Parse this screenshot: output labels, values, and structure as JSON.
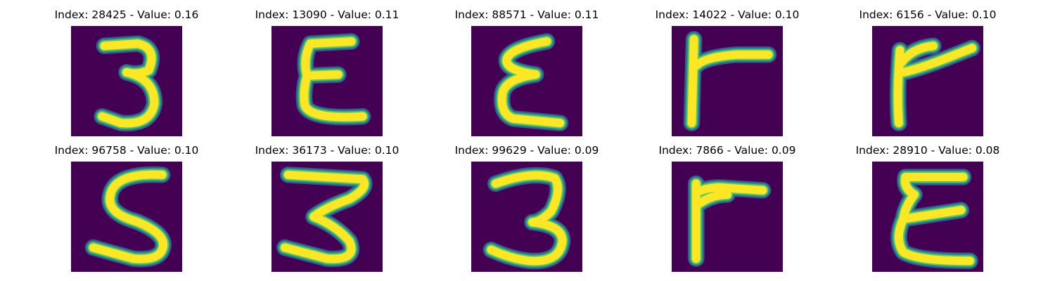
{
  "colors": {
    "background": "#440154",
    "stroke_core": "#fde725",
    "stroke_mid": "#5ec962",
    "stroke_edge": "#21918c",
    "stroke_faint": "#3b528b"
  },
  "panels": [
    {
      "title": "Index: 28425 - Value: 0.16",
      "glyph": "3"
    },
    {
      "title": "Index: 13090 - Value: 0.11",
      "glyph": "E"
    },
    {
      "title": "Index: 88571 - Value: 0.11",
      "glyph": "E"
    },
    {
      "title": "Index: 14022 - Value: 0.10",
      "glyph": "r"
    },
    {
      "title": "Index: 6156 - Value: 0.10",
      "glyph": "r"
    },
    {
      "title": "Index: 96758 - Value: 0.10",
      "glyph": "S"
    },
    {
      "title": "Index: 36173 - Value: 0.10",
      "glyph": "3"
    },
    {
      "title": "Index: 99629 - Value: 0.09",
      "glyph": "3"
    },
    {
      "title": "Index: 7866 - Value: 0.09",
      "glyph": "r"
    },
    {
      "title": "Index: 28910 - Value: 0.08",
      "glyph": "E"
    }
  ]
}
